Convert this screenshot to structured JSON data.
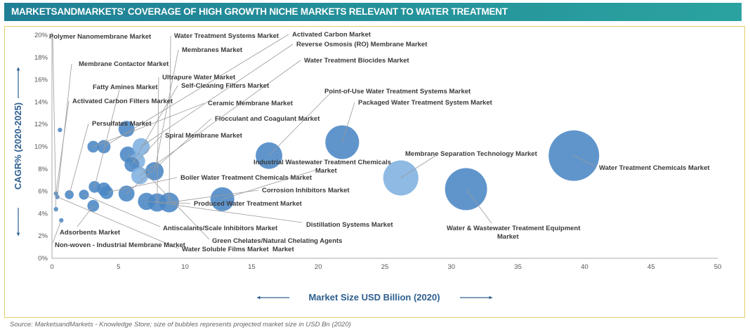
{
  "title": "MARKETSANDMARKETS' COVERAGE OF HIGH GROWTH NICHE MARKETS RELEVANT TO WATER TREATMENT",
  "source": "Source: MarketsandMarkets - Knowledge Store; size of bubbles represents projected market size in USD Bn (2020)",
  "colors": {
    "bubble": "#4a86c5",
    "bubble_light": "#7eb0e0",
    "title_bar": "#1f8a9a",
    "axis_title": "#2d5f8f",
    "frame": "#e3cf6a"
  },
  "chart_data": {
    "type": "bubble",
    "xlabel": "Market Size USD Billion (2020)",
    "ylabel": "CAGR% (2020-2025)",
    "xlim": [
      0,
      50
    ],
    "ylim": [
      0,
      20
    ],
    "x_ticks": [
      "0",
      "5",
      "10",
      "15",
      "20",
      "25",
      "30",
      "35",
      "40",
      "45",
      "50"
    ],
    "y_ticks": [
      "0%",
      "2%",
      "4%",
      "6%",
      "8%",
      "10%",
      "12%",
      "14%",
      "16%",
      "18%",
      "20%"
    ],
    "grid": false,
    "points": [
      {
        "x": 0.6,
        "y": 11.5,
        "size": 1
      },
      {
        "x": 3.1,
        "y": 10.0,
        "size": 7
      },
      {
        "x": 3.9,
        "y": 10.0,
        "size": 9
      },
      {
        "x": 5.6,
        "y": 11.6,
        "size": 13
      },
      {
        "x": 5.7,
        "y": 9.3,
        "size": 13
      },
      {
        "x": 6.7,
        "y": 10.0,
        "size": 15,
        "light": true
      },
      {
        "x": 6.4,
        "y": 8.7,
        "size": 13,
        "light": true
      },
      {
        "x": 6.0,
        "y": 8.4,
        "size": 11
      },
      {
        "x": 6.6,
        "y": 7.4,
        "size": 15,
        "light": true
      },
      {
        "x": 7.7,
        "y": 7.8,
        "size": 17
      },
      {
        "x": 3.2,
        "y": 6.4,
        "size": 7
      },
      {
        "x": 3.9,
        "y": 6.2,
        "size": 9
      },
      {
        "x": 4.1,
        "y": 5.9,
        "size": 9
      },
      {
        "x": 5.6,
        "y": 5.8,
        "size": 13
      },
      {
        "x": 1.3,
        "y": 5.7,
        "size": 4
      },
      {
        "x": 2.4,
        "y": 5.7,
        "size": 5
      },
      {
        "x": 3.1,
        "y": 4.7,
        "size": 7
      },
      {
        "x": 0.3,
        "y": 5.8,
        "size": 1
      },
      {
        "x": 0.4,
        "y": 5.5,
        "size": 1
      },
      {
        "x": 0.3,
        "y": 4.4,
        "size": 1
      },
      {
        "x": 0.7,
        "y": 3.4,
        "size": 1
      },
      {
        "x": 7.1,
        "y": 5.1,
        "size": 15
      },
      {
        "x": 7.9,
        "y": 5.0,
        "size": 17
      },
      {
        "x": 8.8,
        "y": 5.0,
        "size": 20
      },
      {
        "x": 12.8,
        "y": 5.3,
        "size": 29
      },
      {
        "x": 16.3,
        "y": 9.2,
        "size": 36
      },
      {
        "x": 21.8,
        "y": 10.4,
        "size": 58
      },
      {
        "x": 26.2,
        "y": 7.2,
        "size": 63,
        "light": true
      },
      {
        "x": 31.1,
        "y": 6.2,
        "size": 90
      },
      {
        "x": 39.2,
        "y": 9.2,
        "size": 130
      }
    ],
    "labels": [
      "Polymer Nanomembrane Market",
      "Membrane Contactor Market",
      "Activated Carbon Filters Market",
      "Fatty Amines Market",
      "Persulfates Market",
      "Water Treatment Systems Market",
      "Membranes Market",
      "Ultrapure Water Market",
      "Self-Cleaning Filters Market",
      "Ceramic Membrane Market",
      "Flocculant and Coagulant Market",
      "Spiral Membrane Market",
      "Activated Carbon Market",
      "Reverse Osmosis (RO) Membrane Market",
      "Water Treatment Biocides Market",
      "Point-of-Use Water Treatment Systems Market",
      "Packaged Water Treatment System Market",
      "Industrial Wastewater Treatment Chemicals Market",
      "Membrane Separation Technology Market",
      "Water Treatment Chemicals Market",
      "Boiler Water Treatment Chemicals Market",
      "Corrosion Inhibitors Market",
      "Produced Water Treatment Market",
      "Distillation Systems Market",
      "Water & Wastewater Treatment Equipment Market",
      "Antiscalants/Scale Inhibitors Market",
      "Adsorbents Market",
      "Green Chelates/Natural Chelating Agents Market",
      "Non-woven - Industrial Membrane Market",
      "Water Soluble Films Market"
    ]
  }
}
